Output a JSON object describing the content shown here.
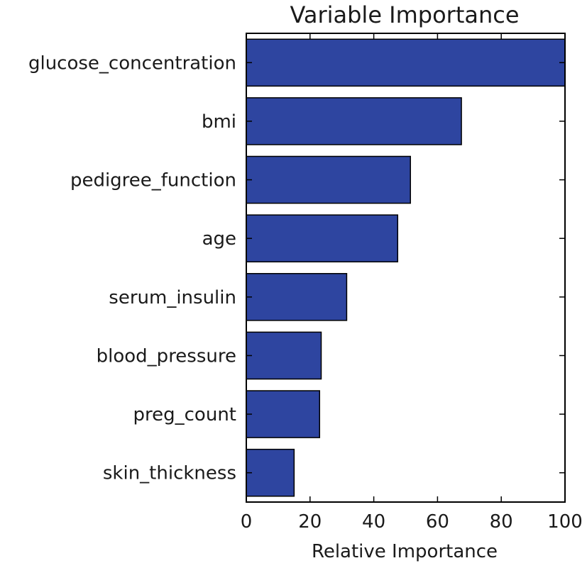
{
  "chart_data": {
    "type": "bar",
    "orientation": "horizontal",
    "title": "Variable Importance",
    "xlabel": "Relative Importance",
    "ylabel": "",
    "categories": [
      "glucose_concentration",
      "bmi",
      "pedigree_function",
      "age",
      "serum_insulin",
      "blood_pressure",
      "preg_count",
      "skin_thickness"
    ],
    "values": [
      100,
      67.5,
      51.5,
      47.5,
      31.5,
      23.5,
      23,
      15
    ],
    "xlim": [
      0,
      100
    ],
    "xticks": [
      "0",
      "20",
      "40",
      "60",
      "80",
      "100"
    ],
    "grid": false,
    "bar_color": "#2e45a0",
    "bar_edge_color": "#000000"
  }
}
